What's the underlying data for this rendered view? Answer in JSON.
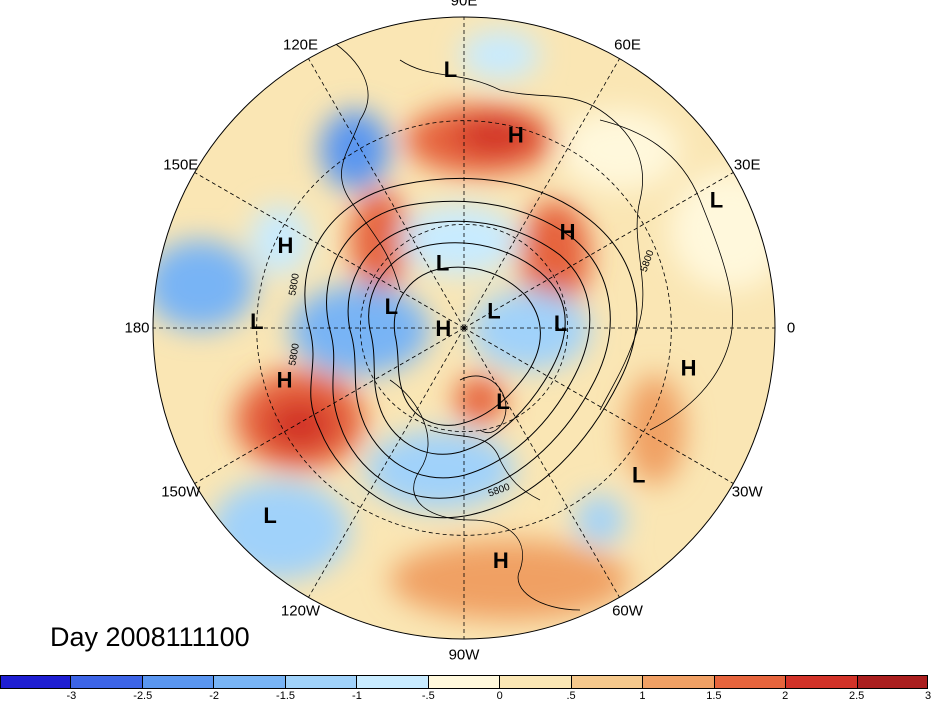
{
  "title": "Day 2008111100",
  "longitude_labels": [
    {
      "text": "90E",
      "angle": 90
    },
    {
      "text": "60E",
      "angle": 60
    },
    {
      "text": "30E",
      "angle": 30
    },
    {
      "text": "0",
      "angle": 0
    },
    {
      "text": "30W",
      "angle": -30
    },
    {
      "text": "60W",
      "angle": -60
    },
    {
      "text": "90W",
      "angle": -90
    },
    {
      "text": "120W",
      "angle": -120
    },
    {
      "text": "150W",
      "angle": -150
    },
    {
      "text": "180",
      "angle": 180
    },
    {
      "text": "150E",
      "angle": 150
    },
    {
      "text": "120E",
      "angle": 120
    }
  ],
  "colorbar": {
    "colors": [
      "#1e1ed2",
      "#3c64e6",
      "#5a96f0",
      "#78b4f5",
      "#a0d2fa",
      "#c8ebff",
      "#fff8dc",
      "#fae6b4",
      "#f5c88c",
      "#f0a064",
      "#e6643c",
      "#d23228",
      "#aa1e1e"
    ],
    "ticks": [
      "-3",
      "-2.5",
      "-2",
      "-1.5",
      "-1",
      "-.5",
      "0",
      ".5",
      "1",
      "1.5",
      "2",
      "2.5",
      "3"
    ]
  },
  "contour_label": "5800",
  "systems": [
    {
      "type": "L",
      "lon": 93,
      "lat": 15
    },
    {
      "type": "H",
      "lon": 75,
      "lat": 32
    },
    {
      "type": "H",
      "lon": 155,
      "lat": 33
    },
    {
      "type": "L",
      "lon": 178,
      "lat": 30
    },
    {
      "type": "L",
      "lon": 27,
      "lat": 8
    },
    {
      "type": "H",
      "lon": 43,
      "lat": 49
    },
    {
      "type": "L",
      "lon": 108,
      "lat": 70
    },
    {
      "type": "L",
      "lon": 163,
      "lat": 68
    },
    {
      "type": "H",
      "lon": 180,
      "lat": 84
    },
    {
      "type": "L",
      "lon": 30,
      "lat": 80
    },
    {
      "type": "L",
      "lon": 3,
      "lat": 62
    },
    {
      "type": "H",
      "lon": -164,
      "lat": 36
    },
    {
      "type": "H",
      "lon": -10,
      "lat": 24
    },
    {
      "type": "L",
      "lon": -62,
      "lat": 66
    },
    {
      "type": "L",
      "lon": -40,
      "lat": 24
    },
    {
      "type": "L",
      "lon": -136,
      "lat": 12
    },
    {
      "type": "H",
      "lon": -81,
      "lat": 22
    }
  ]
}
